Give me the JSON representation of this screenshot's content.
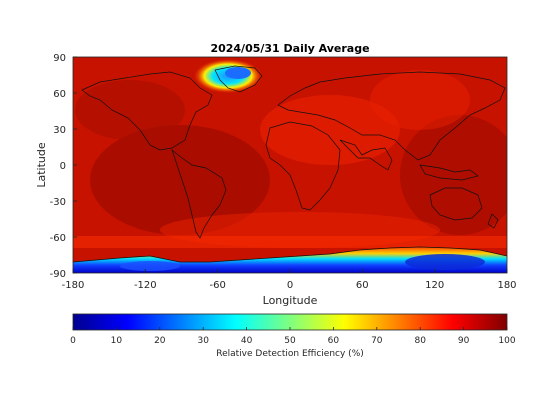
{
  "map": {
    "title": "2024/05/31 Daily Average",
    "xlabel": "Longitude",
    "ylabel": "Latitude",
    "xlim": [
      -180,
      180
    ],
    "ylim": [
      -90,
      90
    ],
    "xticks": [
      "-180",
      "-120",
      "-60",
      "0",
      "60",
      "120",
      "180"
    ],
    "yticks": [
      "90",
      "60",
      "30",
      "0",
      "-30",
      "-60",
      "-90"
    ]
  },
  "colorbar": {
    "label": "Relative Detection Efficiency (%)",
    "ticks": [
      "0",
      "10",
      "20",
      "30",
      "40",
      "50",
      "60",
      "70",
      "80",
      "90",
      "100"
    ],
    "range": [
      0,
      100
    ],
    "colormap": "jet"
  }
}
